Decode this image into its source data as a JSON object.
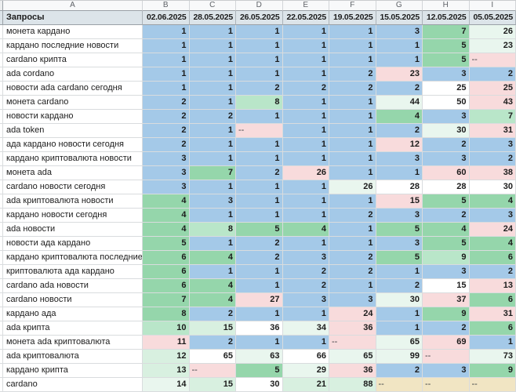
{
  "sheet": {
    "column_letters": [
      "A",
      "B",
      "C",
      "D",
      "E",
      "F",
      "G",
      "H",
      "I"
    ],
    "header": {
      "label": "Запросы",
      "dates": [
        "02.06.2025",
        "28.05.2025",
        "26.05.2025",
        "22.05.2025",
        "19.05.2025",
        "15.05.2025",
        "12.05.2025",
        "05.05.2025"
      ]
    },
    "colors": {
      "position_blue": "#a4c9e8",
      "green": "#95d6ab",
      "green_light": "#b9e6c9",
      "green_lighter": "#d8f0e0",
      "green_faint": "#e9f6ee",
      "white": "#ffffff",
      "pink": "#f8dbdc",
      "tan": "#f1e5c3",
      "header_bg": "#dce4e9"
    },
    "rows": [
      {
        "query": "монета кардано",
        "values": [
          "1",
          "1",
          "1",
          "1",
          "1",
          "3",
          "7",
          "26"
        ],
        "colors": [
          "b",
          "b",
          "b",
          "b",
          "b",
          "b",
          "g1",
          "g4"
        ]
      },
      {
        "query": "кардано последние новости",
        "values": [
          "1",
          "1",
          "1",
          "1",
          "1",
          "1",
          "5",
          "23"
        ],
        "colors": [
          "b",
          "b",
          "b",
          "b",
          "b",
          "b",
          "g1",
          "g4"
        ]
      },
      {
        "query": "cardano крипта",
        "values": [
          "1",
          "1",
          "1",
          "1",
          "1",
          "1",
          "5",
          "--"
        ],
        "colors": [
          "b",
          "b",
          "b",
          "b",
          "b",
          "b",
          "g1",
          "p"
        ]
      },
      {
        "query": "ada cordano",
        "values": [
          "1",
          "1",
          "1",
          "1",
          "2",
          "23",
          "3",
          "2"
        ],
        "colors": [
          "b",
          "b",
          "b",
          "b",
          "b",
          "p",
          "b",
          "b"
        ]
      },
      {
        "query": "новости ada cardano сегодня",
        "values": [
          "1",
          "1",
          "2",
          "2",
          "2",
          "2",
          "25",
          "25"
        ],
        "colors": [
          "b",
          "b",
          "b",
          "b",
          "b",
          "b",
          "w",
          "p"
        ]
      },
      {
        "query": "монета cardano",
        "values": [
          "2",
          "1",
          "8",
          "1",
          "1",
          "44",
          "50",
          "43"
        ],
        "colors": [
          "b",
          "b",
          "g2",
          "b",
          "b",
          "g4",
          "w",
          "p"
        ]
      },
      {
        "query": "новости кардано",
        "values": [
          "2",
          "2",
          "1",
          "1",
          "1",
          "4",
          "3",
          "7"
        ],
        "colors": [
          "b",
          "b",
          "b",
          "b",
          "b",
          "g1",
          "b",
          "g2"
        ]
      },
      {
        "query": "ada token",
        "values": [
          "2",
          "1",
          "--",
          "1",
          "1",
          "2",
          "30",
          "31"
        ],
        "colors": [
          "b",
          "b",
          "p",
          "b",
          "b",
          "b",
          "g4",
          "p"
        ]
      },
      {
        "query": "ада кардано новости сегодня",
        "values": [
          "2",
          "1",
          "1",
          "1",
          "1",
          "12",
          "2",
          "3"
        ],
        "colors": [
          "b",
          "b",
          "b",
          "b",
          "b",
          "p",
          "b",
          "b"
        ]
      },
      {
        "query": "кардано криптовалюта новости",
        "values": [
          "3",
          "1",
          "1",
          "1",
          "1",
          "3",
          "3",
          "2"
        ],
        "colors": [
          "b",
          "b",
          "b",
          "b",
          "b",
          "b",
          "b",
          "b"
        ]
      },
      {
        "query": "монета ada",
        "values": [
          "3",
          "7",
          "2",
          "26",
          "1",
          "1",
          "60",
          "38"
        ],
        "colors": [
          "b",
          "g1",
          "b",
          "p",
          "b",
          "b",
          "p",
          "p"
        ]
      },
      {
        "query": "cardano новости сегодня",
        "values": [
          "3",
          "1",
          "1",
          "1",
          "26",
          "28",
          "28",
          "30"
        ],
        "colors": [
          "b",
          "b",
          "b",
          "b",
          "g4",
          "w",
          "w",
          "w"
        ]
      },
      {
        "query": "ada криптовалюта новости",
        "values": [
          "4",
          "3",
          "1",
          "1",
          "1",
          "15",
          "5",
          "4"
        ],
        "colors": [
          "g1",
          "b",
          "b",
          "b",
          "b",
          "p",
          "g1",
          "g1"
        ]
      },
      {
        "query": "кардано новости сегодня",
        "values": [
          "4",
          "1",
          "1",
          "1",
          "2",
          "3",
          "2",
          "3"
        ],
        "colors": [
          "g1",
          "b",
          "b",
          "b",
          "b",
          "b",
          "b",
          "b"
        ]
      },
      {
        "query": "ada новости",
        "values": [
          "4",
          "8",
          "5",
          "4",
          "1",
          "5",
          "4",
          "24"
        ],
        "colors": [
          "g1",
          "g2",
          "g1",
          "g1",
          "b",
          "g1",
          "g1",
          "p"
        ]
      },
      {
        "query": "новости ада кардано",
        "values": [
          "5",
          "1",
          "2",
          "1",
          "1",
          "3",
          "5",
          "4"
        ],
        "colors": [
          "g1",
          "b",
          "b",
          "b",
          "b",
          "b",
          "g1",
          "g1"
        ]
      },
      {
        "query": "кардано криптовалюта последние новости",
        "values": [
          "6",
          "4",
          "2",
          "3",
          "2",
          "5",
          "9",
          "6"
        ],
        "colors": [
          "g1",
          "g1",
          "b",
          "b",
          "b",
          "g1",
          "g2",
          "g1"
        ]
      },
      {
        "query": "криптовалюта ада кардано",
        "values": [
          "6",
          "1",
          "1",
          "2",
          "2",
          "1",
          "3",
          "2"
        ],
        "colors": [
          "g1",
          "b",
          "b",
          "b",
          "b",
          "b",
          "b",
          "b"
        ]
      },
      {
        "query": "cardano ada новости",
        "values": [
          "6",
          "4",
          "1",
          "2",
          "1",
          "2",
          "15",
          "13"
        ],
        "colors": [
          "g1",
          "g1",
          "b",
          "b",
          "b",
          "b",
          "w",
          "p"
        ]
      },
      {
        "query": "cardano новости",
        "values": [
          "7",
          "4",
          "27",
          "3",
          "3",
          "30",
          "37",
          "6"
        ],
        "colors": [
          "g1",
          "g1",
          "p",
          "b",
          "b",
          "g4",
          "p",
          "g1"
        ]
      },
      {
        "query": "кардано ада",
        "values": [
          "8",
          "2",
          "1",
          "1",
          "24",
          "1",
          "9",
          "31"
        ],
        "colors": [
          "g1",
          "b",
          "b",
          "b",
          "p",
          "b",
          "g1",
          "p"
        ]
      },
      {
        "query": "ada крипта",
        "values": [
          "10",
          "15",
          "36",
          "34",
          "36",
          "1",
          "2",
          "6"
        ],
        "colors": [
          "g2",
          "g3",
          "w",
          "g4",
          "p",
          "b",
          "b",
          "g1"
        ]
      },
      {
        "query": "монета ada криптовалюта",
        "values": [
          "11",
          "2",
          "1",
          "1",
          "--",
          "65",
          "69",
          "1"
        ],
        "colors": [
          "p",
          "b",
          "b",
          "b",
          "p",
          "g4",
          "p",
          "b"
        ]
      },
      {
        "query": "ada криптовалюта",
        "values": [
          "12",
          "65",
          "63",
          "66",
          "65",
          "99",
          "--",
          "73"
        ],
        "colors": [
          "g3",
          "w",
          "g4",
          "w",
          "g4",
          "g4",
          "p",
          "g4"
        ]
      },
      {
        "query": "кардано крипта",
        "values": [
          "13",
          "--",
          "5",
          "29",
          "36",
          "2",
          "3",
          "9"
        ],
        "colors": [
          "g3",
          "p",
          "g1",
          "g4",
          "p",
          "b",
          "b",
          "g1"
        ]
      },
      {
        "query": "cardano",
        "values": [
          "14",
          "15",
          "30",
          "21",
          "88",
          "--",
          "--",
          "--"
        ],
        "colors": [
          "g4",
          "g3",
          "w",
          "g3",
          "g3",
          "t",
          "t",
          "t"
        ]
      }
    ]
  }
}
